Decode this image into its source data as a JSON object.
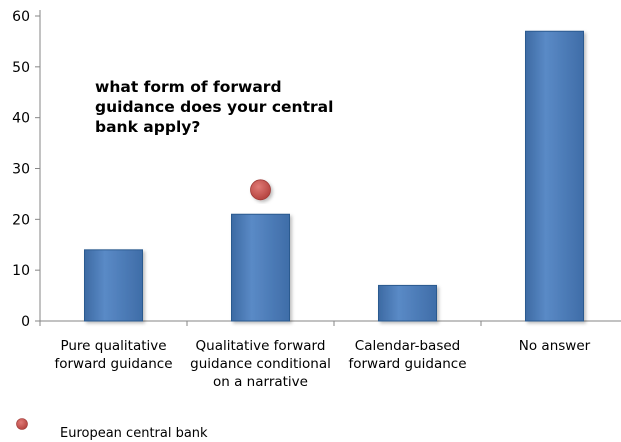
{
  "chart_data": {
    "type": "bar",
    "title_lines": [
      "what form of forward",
      "guidance does your central",
      "bank apply?"
    ],
    "categories": [
      [
        "Pure qualitative",
        "forward guidance"
      ],
      [
        "Qualitative forward",
        "guidance conditional",
        "on a narrative"
      ],
      [
        "Calendar-based",
        "forward guidance"
      ],
      [
        "No answer"
      ]
    ],
    "values": [
      14,
      21,
      7,
      57
    ],
    "marker": {
      "category_index": 1,
      "value": 26,
      "label": "European central bank",
      "color": "#c0504d"
    },
    "ylim": [
      0,
      60
    ],
    "yticks": [
      0,
      10,
      20,
      30,
      40,
      50,
      60
    ],
    "bar_color": "#4f81bd",
    "bar_edge_color": "#2c5a8f",
    "legend_position": "bottom-left",
    "grid": false
  }
}
